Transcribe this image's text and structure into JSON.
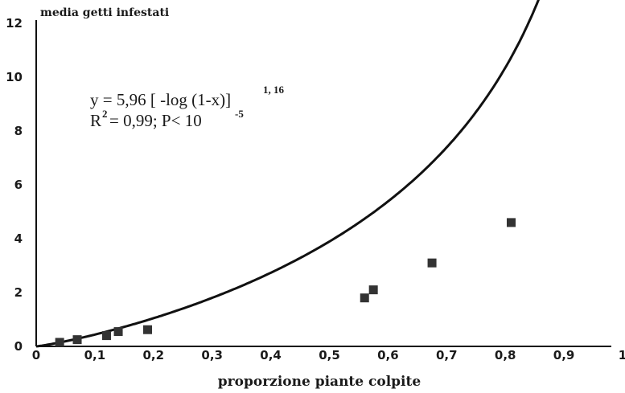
{
  "chart_data": {
    "type": "scatter",
    "ylabel": "media getti infestati",
    "xlabel": "proporzione piante colpite",
    "xlim": [
      0,
      1
    ],
    "ylim": [
      0,
      12
    ],
    "x_ticks": [
      "0",
      "0,1",
      "0,2",
      "0,3",
      "0,4",
      "0,5",
      "0,6",
      "0,7",
      "0,8",
      "0,9",
      "1"
    ],
    "y_ticks": [
      "0",
      "2",
      "4",
      "6",
      "8",
      "10",
      "12"
    ],
    "grid": false,
    "points": [
      {
        "x": 0.04,
        "y": 0.15
      },
      {
        "x": 0.07,
        "y": 0.25
      },
      {
        "x": 0.12,
        "y": 0.4
      },
      {
        "x": 0.14,
        "y": 0.55
      },
      {
        "x": 0.19,
        "y": 0.62
      },
      {
        "x": 0.56,
        "y": 1.8
      },
      {
        "x": 0.575,
        "y": 2.1
      },
      {
        "x": 0.675,
        "y": 3.1
      },
      {
        "x": 0.81,
        "y": 4.6
      }
    ],
    "fit": {
      "coefficient": 5.96,
      "exponent": 1.16,
      "x_end": 0.97
    },
    "annotation": {
      "equation_main": "y = 5,96 [ -log (1-x)]",
      "equation_exp": "1, 16",
      "r_prefix": "R",
      "r_sup": "2",
      "r_stats": "= 0,99;  P< 10",
      "p_exp": "-5"
    }
  }
}
